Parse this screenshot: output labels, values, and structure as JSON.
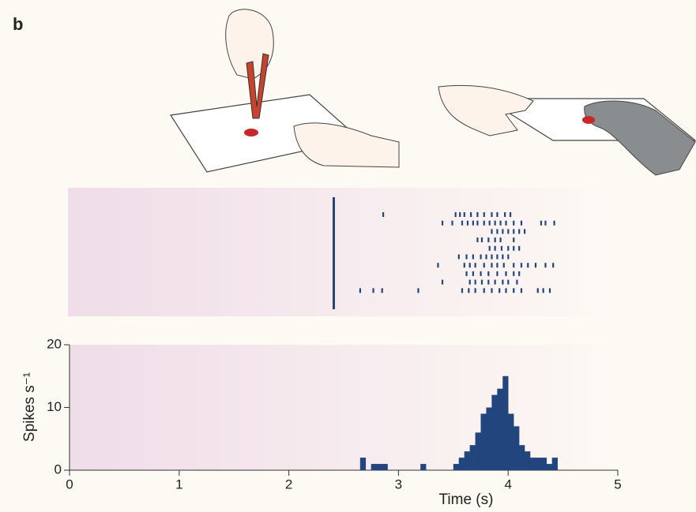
{
  "panel_label": "b",
  "chart_data": [
    {
      "type": "raster",
      "xlim": [
        0,
        5
      ],
      "color": "#23457e",
      "event_time": 2.41,
      "trials": [
        [
          2.86,
          3.52,
          3.56,
          3.6,
          3.66,
          3.72,
          3.78,
          3.85,
          3.9,
          3.97,
          4.02
        ],
        [
          3.4,
          3.49,
          3.58,
          3.63,
          3.68,
          3.72,
          3.78,
          3.83,
          3.88,
          3.93,
          3.98,
          4.05,
          4.12,
          4.3,
          4.34,
          4.42
        ],
        [
          3.85,
          3.9,
          3.95,
          4.0,
          4.05,
          4.1,
          4.15
        ],
        [
          3.72,
          3.76,
          3.82,
          3.88,
          3.93,
          4.05
        ],
        [
          3.83,
          3.88,
          3.94,
          4.0,
          4.05,
          4.1
        ],
        [
          3.55,
          3.62,
          3.68,
          3.75,
          3.8,
          3.85,
          3.9,
          3.95,
          4.0
        ],
        [
          3.36,
          3.6,
          3.65,
          3.7,
          3.78,
          3.85,
          3.9,
          3.96,
          4.05,
          4.12,
          4.18,
          4.25,
          4.34,
          4.41
        ],
        [
          3.62,
          3.68,
          3.75,
          3.82,
          3.9,
          3.98,
          4.05,
          4.1
        ],
        [
          3.4,
          3.65,
          3.7,
          3.76,
          3.82,
          3.88,
          3.95,
          4.0,
          4.08
        ],
        [
          2.65,
          2.77,
          2.85,
          3.18,
          3.58,
          3.64,
          3.7,
          3.78,
          3.85,
          3.92,
          3.98,
          4.05,
          4.12,
          4.27,
          4.32,
          4.38
        ]
      ]
    },
    {
      "type": "histogram",
      "color": "#23457e",
      "xlabel": "Time (s)",
      "ylabel": "Spikes s⁻¹",
      "xlim": [
        0,
        5
      ],
      "ylim": [
        0,
        20
      ],
      "xticks": [
        0,
        1,
        2,
        3,
        4,
        5
      ],
      "yticks": [
        0,
        10,
        20
      ],
      "bins": [
        2.6,
        2.65,
        2.7,
        2.75,
        2.8,
        2.85,
        2.9,
        2.95,
        3.0,
        3.05,
        3.1,
        3.15,
        3.2,
        3.25,
        3.3,
        3.35,
        3.4,
        3.45,
        3.5,
        3.55,
        3.6,
        3.65,
        3.7,
        3.75,
        3.8,
        3.85,
        3.9,
        3.95,
        4.0,
        4.05,
        4.1,
        4.15,
        4.2,
        4.25,
        4.3,
        4.35,
        4.4,
        4.45,
        4.5
      ],
      "counts": [
        0,
        2,
        0,
        1,
        1,
        1,
        0,
        0,
        0,
        0,
        0,
        0,
        1,
        0,
        0,
        0,
        0,
        0,
        1,
        2,
        3,
        4,
        6,
        9,
        10,
        12,
        13,
        15,
        9,
        7,
        4,
        3,
        2,
        2,
        2,
        1,
        2,
        0
      ]
    }
  ]
}
